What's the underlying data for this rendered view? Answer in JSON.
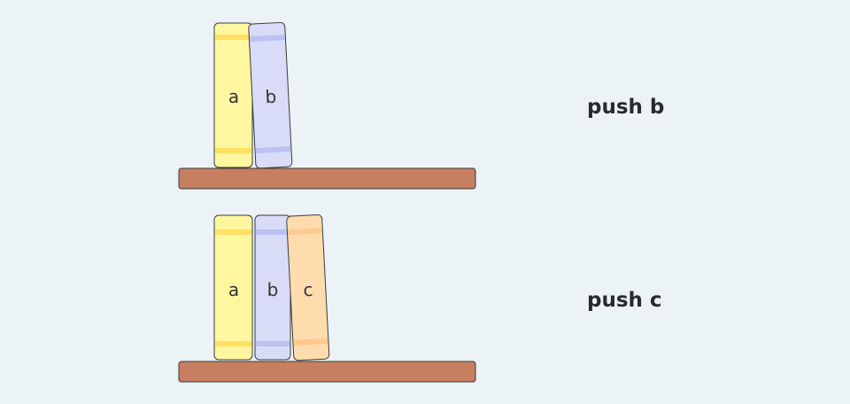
{
  "scenes": [
    {
      "caption": "push b",
      "books": [
        {
          "label": "a",
          "color": "#fff7a0",
          "stripe": "#ffe062"
        },
        {
          "label": "b",
          "color": "#d8dcf7",
          "stripe": "#b9c2f3"
        }
      ]
    },
    {
      "caption": "push c",
      "books": [
        {
          "label": "a",
          "color": "#fff7a0",
          "stripe": "#ffe062"
        },
        {
          "label": "b",
          "color": "#d8dcf7",
          "stripe": "#b9c2f3"
        },
        {
          "label": "c",
          "color": "#ffdcae",
          "stripe": "#ffc98c"
        }
      ]
    }
  ],
  "colors": {
    "background": "#ebf3f7",
    "shelf": "#c67f60",
    "outline": "#3a3a3a",
    "caption": "#2a2a2a"
  }
}
